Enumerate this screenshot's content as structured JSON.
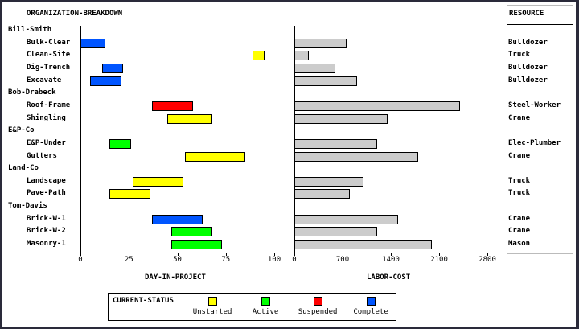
{
  "chart_data": {
    "type": "gantt",
    "title": "ORGANIZATION-BREAKDOWN",
    "resource_header": "RESOURCE",
    "gantt_axis": {
      "label": "DAY-IN-PROJECT",
      "range": [
        0,
        100
      ],
      "ticks": [
        "0",
        "25",
        "50",
        "75",
        "100"
      ]
    },
    "cost_axis": {
      "label": "LABOR-COST",
      "range": [
        0,
        2800
      ],
      "ticks": [
        "0",
        "700",
        "1400",
        "2100",
        "2800"
      ]
    },
    "legend": {
      "title": "CURRENT-STATUS",
      "items": [
        {
          "label": "Unstarted",
          "color": "#ffff00"
        },
        {
          "label": "Active",
          "color": "#00ff00"
        },
        {
          "label": "Suspended",
          "color": "#ff0000"
        },
        {
          "label": "Complete",
          "color": "#0055ff"
        }
      ]
    },
    "rows": [
      {
        "label": "Bill-Smith",
        "group": true
      },
      {
        "label": "Bulk-Clear",
        "start": 0,
        "end": 13,
        "status": "Complete",
        "cost": 760,
        "resource": "Bulldozer"
      },
      {
        "label": "Clean-Site",
        "start": 89,
        "end": 95,
        "status": "Unstarted",
        "cost": 210,
        "resource": "Truck"
      },
      {
        "label": "Dig-Trench",
        "start": 11,
        "end": 22,
        "status": "Complete",
        "cost": 600,
        "resource": "Bulldozer"
      },
      {
        "label": "Excavate",
        "start": 5,
        "end": 21,
        "status": "Complete",
        "cost": 910,
        "resource": "Bulldozer"
      },
      {
        "label": "Bob-Drabeck",
        "group": true
      },
      {
        "label": "Roof-Frame",
        "start": 37,
        "end": 58,
        "status": "Suspended",
        "cost": 2400,
        "resource": "Steel-Worker"
      },
      {
        "label": "Shingling",
        "start": 45,
        "end": 68,
        "status": "Unstarted",
        "cost": 1350,
        "resource": "Crane"
      },
      {
        "label": "E&P-Co",
        "group": true
      },
      {
        "label": "E&P-Under",
        "start": 15,
        "end": 26,
        "status": "Active",
        "cost": 1200,
        "resource": "Elec-Plumber"
      },
      {
        "label": "Gutters",
        "start": 54,
        "end": 85,
        "status": "Unstarted",
        "cost": 1800,
        "resource": "Crane"
      },
      {
        "label": "Land-Co",
        "group": true
      },
      {
        "label": "Landscape",
        "start": 27,
        "end": 53,
        "status": "Unstarted",
        "cost": 1000,
        "resource": "Truck"
      },
      {
        "label": "Pave-Path",
        "start": 15,
        "end": 36,
        "status": "Unstarted",
        "cost": 800,
        "resource": "Truck"
      },
      {
        "label": "Tom-Davis",
        "group": true
      },
      {
        "label": "Brick-W-1",
        "start": 37,
        "end": 63,
        "status": "Complete",
        "cost": 1500,
        "resource": "Crane"
      },
      {
        "label": "Brick-W-2",
        "start": 47,
        "end": 68,
        "status": "Active",
        "cost": 1200,
        "resource": "Crane"
      },
      {
        "label": "Masonry-1",
        "start": 47,
        "end": 73,
        "status": "Active",
        "cost": 2000,
        "resource": "Mason"
      }
    ]
  }
}
